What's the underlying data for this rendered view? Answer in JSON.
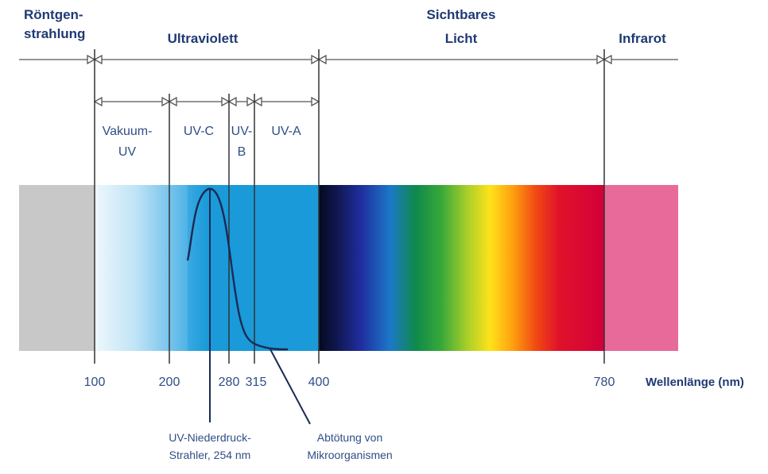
{
  "regions": {
    "xray": [
      "Röntgen-",
      "strahlung"
    ],
    "uv": "Ultraviolett",
    "visible": [
      "Sichtbares",
      "Licht"
    ],
    "ir": "Infrarot"
  },
  "uv_bands": {
    "vacuum": [
      "Vakuum-",
      "UV"
    ],
    "uvc": "UV-C",
    "uvb": [
      "UV-",
      "B"
    ],
    "uva": "UV-A"
  },
  "ticks": [
    "100",
    "200",
    "280",
    "315",
    "400",
    "780"
  ],
  "axis_label": "Wellenlänge (nm)",
  "annotations": {
    "lamp": [
      "UV-Niederdruck-",
      "Strahler, 254 nm"
    ],
    "kill": [
      "Abtötung von",
      "Mikroorganismen"
    ]
  },
  "colors": {
    "xray_band": "#c8c8c8",
    "uv_band": "#1a9ad9",
    "ir_band": "#e86a9a",
    "text": "#1f3a73"
  }
}
